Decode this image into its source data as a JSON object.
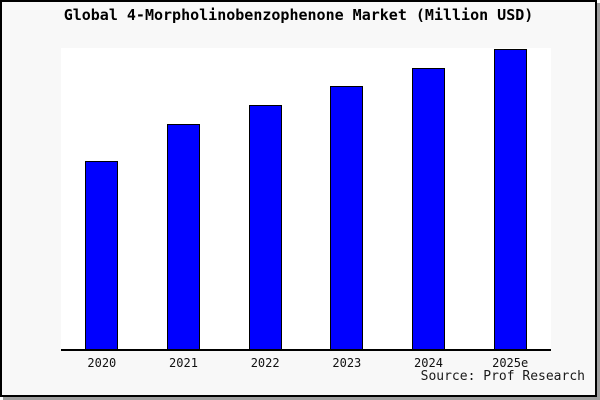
{
  "figure": {
    "background": "#f8f8f8",
    "plot_background": "#ffffff",
    "border_color": "#000000",
    "shadow_color": "#9e9e9e"
  },
  "source": "Source: Prof Research",
  "chart_data": {
    "type": "bar",
    "title": "Global 4-Morpholinobenzophenone Market (Million USD)",
    "xlabel": "",
    "ylabel": "",
    "categories": [
      "2020",
      "2021",
      "2022",
      "2023",
      "2024",
      "2025e"
    ],
    "values_pct_of_max": [
      62.7,
      75.0,
      81.3,
      87.7,
      93.7,
      100.0
    ],
    "y_axis_ticks": "none",
    "grid": false,
    "legend": false,
    "bar_color": "#0000ff",
    "bar_edge_color": "#000000"
  }
}
